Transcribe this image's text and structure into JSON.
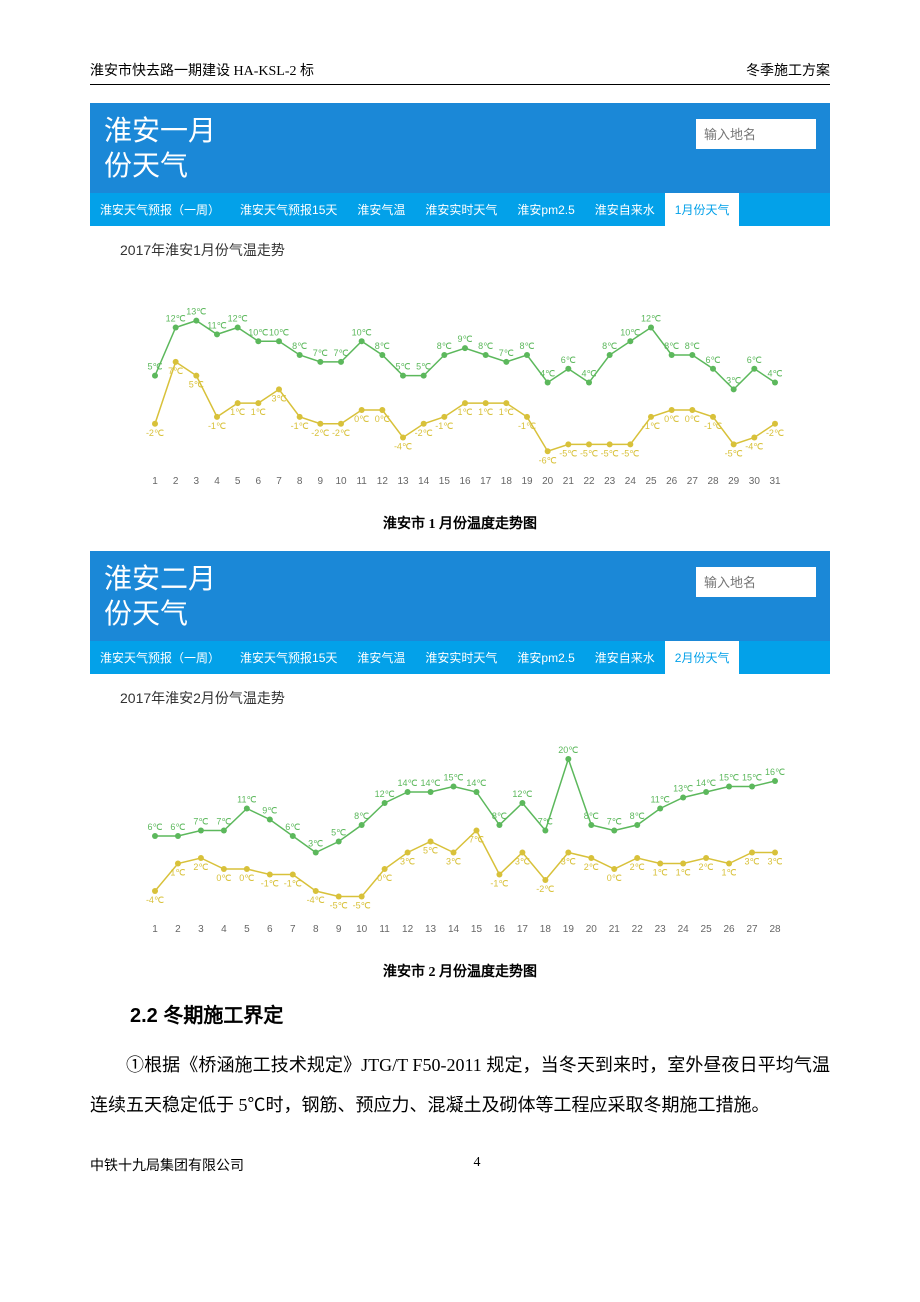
{
  "header": {
    "left": "淮安市快去路一期建设 HA-KSL-2 标",
    "right": "冬季施工方案"
  },
  "widgets": [
    {
      "title": "淮安一月份天气",
      "search_placeholder": "输入地名",
      "tabs": [
        {
          "label": "淮安天气预报（一周）",
          "active": false
        },
        {
          "label": "淮安天气预报15天",
          "active": false
        },
        {
          "label": "淮安气温",
          "active": false
        },
        {
          "label": "淮安实时天气",
          "active": false
        },
        {
          "label": "淮安pm2.5",
          "active": false
        },
        {
          "label": "淮安自来水",
          "active": false
        },
        {
          "label": "1月份天气",
          "active": true
        }
      ],
      "chart": {
        "title": "2017年淮安1月份气温走势",
        "type": "line",
        "days": [
          1,
          2,
          3,
          4,
          5,
          6,
          7,
          8,
          9,
          10,
          11,
          12,
          13,
          14,
          15,
          16,
          17,
          18,
          19,
          20,
          21,
          22,
          23,
          24,
          25,
          26,
          27,
          28,
          29,
          30,
          31
        ],
        "high": {
          "values": [
            5,
            12,
            13,
            11,
            12,
            10,
            10,
            8,
            7,
            7,
            10,
            8,
            5,
            5,
            8,
            9,
            8,
            7,
            8,
            4,
            6,
            4,
            8,
            10,
            12,
            8,
            8,
            6,
            3,
            6,
            4
          ],
          "color": "#5cb85c",
          "label_suffix": "℃",
          "marker": "circle",
          "marker_size": 3,
          "line_width": 1.5
        },
        "low": {
          "values": [
            -2,
            7,
            5,
            -1,
            1,
            1,
            3,
            -1,
            -2,
            -2,
            0,
            0,
            -4,
            -2,
            -1,
            1,
            1,
            1,
            -1,
            -6,
            -5,
            -5,
            -5,
            -5,
            -1,
            0,
            0,
            -1,
            -5,
            -4,
            -2
          ],
          "color": "#d8c13a",
          "label_suffix": "℃",
          "marker": "circle",
          "marker_size": 3,
          "line_width": 1.5
        },
        "ylim": [
          -8,
          16
        ],
        "background_color": "#ffffff",
        "label_fontsize": 9,
        "axis_label_fontsize": 10,
        "axis_label_color": "#666666"
      },
      "caption": "淮安市 1 月份温度走势图"
    },
    {
      "title": "淮安二月份天气",
      "search_placeholder": "输入地名",
      "tabs": [
        {
          "label": "淮安天气预报（一周）",
          "active": false
        },
        {
          "label": "淮安天气预报15天",
          "active": false
        },
        {
          "label": "淮安气温",
          "active": false
        },
        {
          "label": "淮安实时天气",
          "active": false
        },
        {
          "label": "淮安pm2.5",
          "active": false
        },
        {
          "label": "淮安自来水",
          "active": false
        },
        {
          "label": "2月份天气",
          "active": true
        }
      ],
      "chart": {
        "title": "2017年淮安2月份气温走势",
        "type": "line",
        "days": [
          1,
          2,
          3,
          4,
          5,
          6,
          7,
          8,
          9,
          10,
          11,
          12,
          13,
          14,
          15,
          16,
          17,
          18,
          19,
          20,
          21,
          22,
          23,
          24,
          25,
          26,
          27,
          28
        ],
        "high": {
          "values": [
            6,
            6,
            7,
            7,
            11,
            9,
            6,
            3,
            5,
            8,
            12,
            14,
            14,
            15,
            14,
            8,
            12,
            7,
            20,
            8,
            7,
            8,
            11,
            13,
            14,
            15,
            15,
            16
          ],
          "color": "#5cb85c",
          "label_suffix": "℃",
          "marker": "circle",
          "marker_size": 3,
          "line_width": 1.5
        },
        "low": {
          "values": [
            -4,
            1,
            2,
            0,
            0,
            -1,
            -1,
            -4,
            -5,
            -5,
            0,
            3,
            5,
            3,
            7,
            -1,
            3,
            -2,
            3,
            2,
            0,
            2,
            1,
            1,
            2,
            1,
            3,
            3
          ],
          "color": "#d8c13a",
          "label_suffix": "℃",
          "marker": "circle",
          "marker_size": 3,
          "line_width": 1.5
        },
        "ylim": [
          -8,
          22
        ],
        "background_color": "#ffffff",
        "label_fontsize": 9,
        "axis_label_fontsize": 10,
        "axis_label_color": "#666666"
      },
      "caption": "淮安市 2 月份温度走势图"
    }
  ],
  "section": {
    "heading": "2.2 冬期施工界定",
    "paragraph": "①根据《桥涵施工技术规定》JTG/T F50-2011 规定，当冬天到来时，室外昼夜日平均气温连续五天稳定低于 5℃时，钢筋、预应力、混凝土及砌体等工程应采取冬期施工措施。"
  },
  "footer": {
    "left": "中铁十九局集团有限公司",
    "page": "4"
  },
  "colors": {
    "header_bg": "#1b88d7",
    "tabbar_bg": "#03a1e9",
    "white": "#ffffff",
    "text": "#000000"
  }
}
